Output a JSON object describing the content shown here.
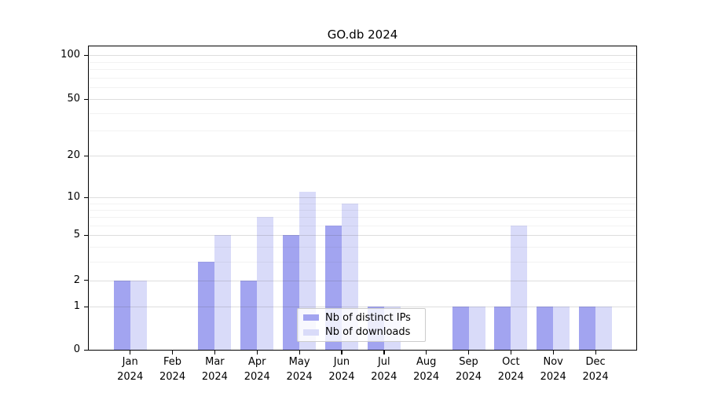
{
  "title": "GO.db 2024",
  "chart_data": {
    "type": "bar",
    "title": "GO.db 2024",
    "categories": [
      "Jan 2024",
      "Feb 2024",
      "Mar 2024",
      "Apr 2024",
      "May 2024",
      "Jun 2024",
      "Jul 2024",
      "Aug 2024",
      "Sep 2024",
      "Oct 2024",
      "Nov 2024",
      "Dec 2024"
    ],
    "x_tick_labels": [
      [
        "Jan",
        "2024"
      ],
      [
        "Feb",
        "2024"
      ],
      [
        "Mar",
        "2024"
      ],
      [
        "Apr",
        "2024"
      ],
      [
        "May",
        "2024"
      ],
      [
        "Jun",
        "2024"
      ],
      [
        "Jul",
        "2024"
      ],
      [
        "Aug",
        "2024"
      ],
      [
        "Sep",
        "2024"
      ],
      [
        "Oct",
        "2024"
      ],
      [
        "Nov",
        "2024"
      ],
      [
        "Dec",
        "2024"
      ]
    ],
    "series": [
      {
        "name": "Nb of distinct IPs",
        "color": "#a2a4f0",
        "values": [
          2,
          0,
          3,
          2,
          5,
          6,
          1,
          0,
          1,
          1,
          1,
          1
        ]
      },
      {
        "name": "Nb of downloads",
        "color": "#d9dbf9",
        "values": [
          2,
          0,
          5,
          7,
          11,
          9,
          1,
          0,
          1,
          6,
          1,
          1
        ]
      }
    ],
    "y_axis": {
      "scale": "log1p",
      "tick_values": [
        0,
        1,
        2,
        5,
        10,
        20,
        50,
        100
      ],
      "minor_gridline_values": [
        3,
        4,
        6,
        7,
        8,
        9,
        30,
        40,
        60,
        70,
        80,
        90
      ],
      "ylim": [
        0,
        110
      ]
    },
    "legend": {
      "position": "bottom-center"
    },
    "grid": true,
    "background": "#ffffff",
    "spine_color": "#000000"
  }
}
